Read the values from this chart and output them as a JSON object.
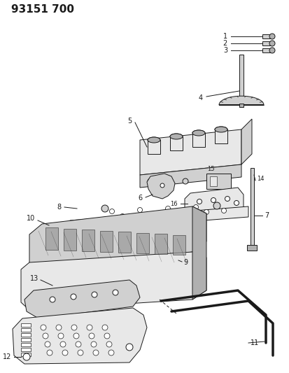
{
  "title": "93151 700",
  "background_color": "#ffffff",
  "line_color": "#1a1a1a",
  "fill_light": "#e8e8e8",
  "fill_mid": "#d0d0d0",
  "fill_dark": "#b0b0b0",
  "title_fontsize": 11,
  "label_fontsize": 7,
  "fig_width": 4.14,
  "fig_height": 5.33,
  "dpi": 100
}
